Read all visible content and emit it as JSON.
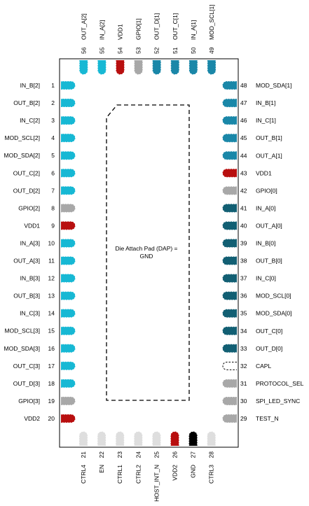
{
  "pins": {
    "left": [
      {
        "n": "1",
        "name": "IN_B[2]",
        "color": "cyan"
      },
      {
        "n": "2",
        "name": "OUT_B[2]",
        "color": "cyan"
      },
      {
        "n": "3",
        "name": "IN_C[2]",
        "color": "cyan"
      },
      {
        "n": "4",
        "name": "MOD_SCL[2]",
        "color": "cyan"
      },
      {
        "n": "5",
        "name": "MOD_SDA[2]",
        "color": "cyan"
      },
      {
        "n": "6",
        "name": "OUT_C[2]",
        "color": "cyan"
      },
      {
        "n": "7",
        "name": "OUT_D[2]",
        "color": "cyan"
      },
      {
        "n": "8",
        "name": "GPIO[2]",
        "color": "gray"
      },
      {
        "n": "9",
        "name": "VDD1",
        "color": "red"
      },
      {
        "n": "10",
        "name": "IN_A[3]",
        "color": "cyan"
      },
      {
        "n": "11",
        "name": "OUT_A[3]",
        "color": "cyan"
      },
      {
        "n": "12",
        "name": "IN_B[3]",
        "color": "cyan"
      },
      {
        "n": "13",
        "name": "OUT_B[3]",
        "color": "cyan"
      },
      {
        "n": "14",
        "name": "IN_C[3]",
        "color": "cyan"
      },
      {
        "n": "15",
        "name": "MOD_SCL[3]",
        "color": "cyan"
      },
      {
        "n": "16",
        "name": "MOD_SDA[3]",
        "color": "cyan"
      },
      {
        "n": "17",
        "name": "OUT_C[3]",
        "color": "cyan"
      },
      {
        "n": "18",
        "name": "OUT_D[3]",
        "color": "cyan"
      },
      {
        "n": "19",
        "name": "GPIO[3]",
        "color": "gray"
      },
      {
        "n": "20",
        "name": "VDD2",
        "color": "red"
      }
    ],
    "bottom": [
      {
        "n": "21",
        "name": "CTRL4",
        "color": "light"
      },
      {
        "n": "22",
        "name": "EN",
        "color": "light"
      },
      {
        "n": "23",
        "name": "CTRL1",
        "color": "light"
      },
      {
        "n": "24",
        "name": "CTRL2",
        "color": "light"
      },
      {
        "n": "25",
        "name": "HOST_INT_N",
        "color": "light"
      },
      {
        "n": "26",
        "name": "VDD2",
        "color": "red"
      },
      {
        "n": "27",
        "name": "GND",
        "color": "black"
      },
      {
        "n": "28",
        "name": "CTRL3",
        "color": "light"
      }
    ],
    "right": [
      {
        "n": "29",
        "name": "TEST_N",
        "color": "gray"
      },
      {
        "n": "30",
        "name": "SPI_LED_SYNC",
        "color": "gray"
      },
      {
        "n": "31",
        "name": "PROTOCOL_SEL",
        "color": "gray"
      },
      {
        "n": "32",
        "name": "CAPL",
        "color": "white"
      },
      {
        "n": "33",
        "name": "OUT_D[0]",
        "color": "teal"
      },
      {
        "n": "34",
        "name": "OUT_C[0]",
        "color": "teal"
      },
      {
        "n": "35",
        "name": "MOD_SDA[0]",
        "color": "teal"
      },
      {
        "n": "36",
        "name": "MOD_SCL[0]",
        "color": "teal"
      },
      {
        "n": "37",
        "name": "IN_C[0]",
        "color": "teal"
      },
      {
        "n": "38",
        "name": "OUT_B[0]",
        "color": "teal"
      },
      {
        "n": "39",
        "name": "IN_B[0]",
        "color": "teal"
      },
      {
        "n": "40",
        "name": "OUT_A[0]",
        "color": "teal"
      },
      {
        "n": "41",
        "name": "IN_A[0]",
        "color": "teal"
      },
      {
        "n": "42",
        "name": "GPIO[0]",
        "color": "gray"
      },
      {
        "n": "43",
        "name": "VDD1",
        "color": "red"
      },
      {
        "n": "44",
        "name": "OUT_A[1]",
        "color": "blue"
      },
      {
        "n": "45",
        "name": "OUT_B[1]",
        "color": "blue"
      },
      {
        "n": "46",
        "name": "IN_C[1]",
        "color": "blue"
      },
      {
        "n": "47",
        "name": "IN_B[1]",
        "color": "blue"
      },
      {
        "n": "48",
        "name": "MOD_SDA[1]",
        "color": "blue"
      }
    ],
    "top": [
      {
        "n": "49",
        "name": "MOD_SCL[1]",
        "color": "blue"
      },
      {
        "n": "50",
        "name": "IN_A[1]",
        "color": "blue"
      },
      {
        "n": "51",
        "name": "OUT_C[1]",
        "color": "blue"
      },
      {
        "n": "52",
        "name": "OUT_D[1]",
        "color": "blue"
      },
      {
        "n": "53",
        "name": "GPIO[1]",
        "color": "gray"
      },
      {
        "n": "54",
        "name": "VDD1",
        "color": "red"
      },
      {
        "n": "55",
        "name": "IN_A[2]",
        "color": "cyan"
      },
      {
        "n": "56",
        "name": "OUT_A[2]",
        "color": "cyan"
      }
    ]
  },
  "dap": {
    "line1": "Die Attach Pad (DAP) =",
    "line2": "GND"
  },
  "colors": {
    "cyan": "#17b8d4",
    "blue": "#1a87a8",
    "teal": "#125f73",
    "red": "#b80f0f",
    "gray": "#a8a8a8",
    "light": "#dedede",
    "black": "#000000",
    "white": "#ffffff"
  }
}
